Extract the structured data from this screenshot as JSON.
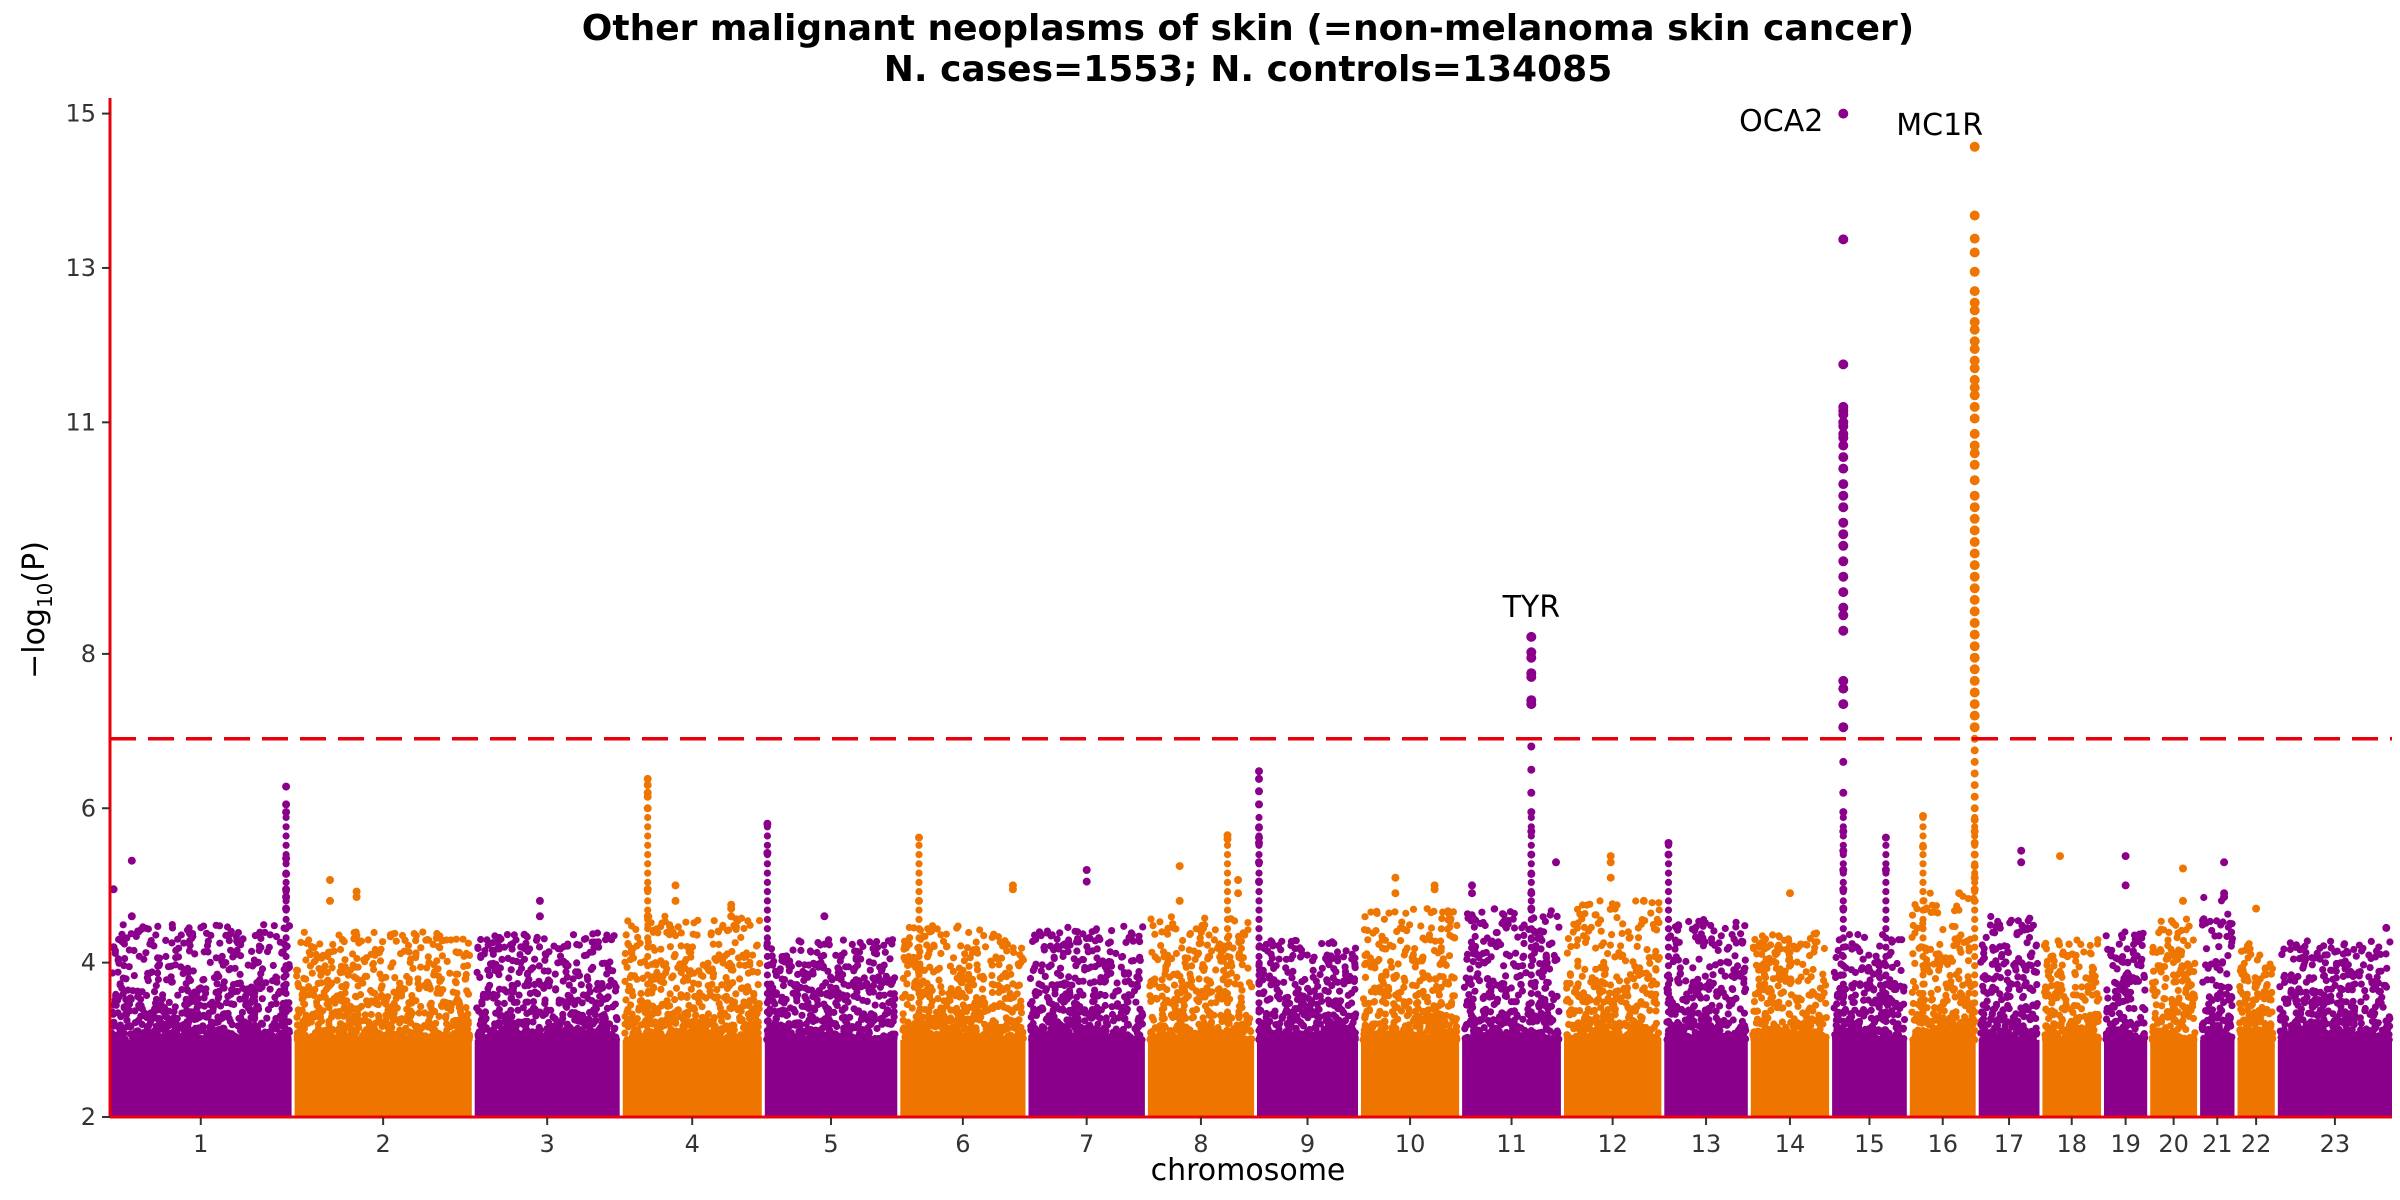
{
  "chart_data": {
    "type": "scatter",
    "subtype": "manhattan",
    "title": "Other malignant neoplasms of skin (=non-melanoma skin cancer)",
    "subtitle": "N. cases=1553; N. controls=134085",
    "xlabel": "chromosome",
    "ylabel_prefix": "−log",
    "ylabel_sub": "10",
    "ylabel_suffix": "(P)",
    "ylim": [
      2,
      15.15
    ],
    "yticks": [
      "2",
      "4",
      "6",
      "8",
      "11",
      "13",
      "15"
    ],
    "ytick_values": [
      2,
      4,
      6,
      8,
      11,
      13,
      15
    ],
    "significance_threshold": 6.9,
    "colors": {
      "odd": "#8b008b",
      "even": "#ee7600",
      "threshold": "#e8000b",
      "axis": "#e8000b"
    },
    "chromosomes": [
      {
        "label": "1",
        "size": 248,
        "color": "#8b008b",
        "max_bg": 4.5
      },
      {
        "label": "2",
        "size": 242,
        "color": "#ee7600",
        "max_bg": 4.4
      },
      {
        "label": "3",
        "size": 198,
        "color": "#8b008b",
        "max_bg": 4.4
      },
      {
        "label": "4",
        "size": 190,
        "color": "#ee7600",
        "max_bg": 4.6
      },
      {
        "label": "5",
        "size": 181,
        "color": "#8b008b",
        "max_bg": 4.3
      },
      {
        "label": "6",
        "size": 171,
        "color": "#ee7600",
        "max_bg": 4.5
      },
      {
        "label": "7",
        "size": 159,
        "color": "#8b008b",
        "max_bg": 4.5
      },
      {
        "label": "8",
        "size": 145,
        "color": "#ee7600",
        "max_bg": 4.6
      },
      {
        "label": "9",
        "size": 138,
        "color": "#8b008b",
        "max_bg": 4.3
      },
      {
        "label": "10",
        "size": 134,
        "color": "#ee7600",
        "max_bg": 4.7
      },
      {
        "label": "11",
        "size": 135,
        "color": "#8b008b",
        "max_bg": 4.7
      },
      {
        "label": "12",
        "size": 133,
        "color": "#ee7600",
        "max_bg": 4.8
      },
      {
        "label": "13",
        "size": 114,
        "color": "#8b008b",
        "max_bg": 4.6
      },
      {
        "label": "14",
        "size": 107,
        "color": "#ee7600",
        "max_bg": 4.4
      },
      {
        "label": "15",
        "size": 102,
        "color": "#8b008b",
        "max_bg": 4.4
      },
      {
        "label": "16",
        "size": 90,
        "color": "#ee7600",
        "max_bg": 4.9
      },
      {
        "label": "17",
        "size": 83,
        "color": "#8b008b",
        "max_bg": 4.6
      },
      {
        "label": "18",
        "size": 80,
        "color": "#ee7600",
        "max_bg": 4.3
      },
      {
        "label": "19",
        "size": 59,
        "color": "#8b008b",
        "max_bg": 4.4
      },
      {
        "label": "20",
        "size": 64,
        "color": "#ee7600",
        "max_bg": 4.6
      },
      {
        "label": "21",
        "size": 47,
        "color": "#8b008b",
        "max_bg": 4.9
      },
      {
        "label": "22",
        "size": 51,
        "color": "#ee7600",
        "max_bg": 4.3
      },
      {
        "label": "23",
        "size": 156,
        "color": "#8b008b",
        "max_bg": 4.3
      }
    ],
    "peaks": [
      {
        "chrom": "1",
        "pos": 0.02,
        "values": [
          4.95,
          4.2
        ]
      },
      {
        "chrom": "1",
        "pos": 0.12,
        "values": [
          5.32,
          4.6
        ]
      },
      {
        "chrom": "1",
        "pos": 0.97,
        "values": [
          6.28,
          6.05,
          5.95,
          5.35,
          5.15,
          4.95,
          4.85,
          4.7
        ]
      },
      {
        "chrom": "2",
        "pos": 0.2,
        "values": [
          5.07,
          4.8
        ]
      },
      {
        "chrom": "2",
        "pos": 0.35,
        "values": [
          4.92,
          4.85
        ]
      },
      {
        "chrom": "3",
        "pos": 0.45,
        "values": [
          4.8,
          4.6
        ]
      },
      {
        "chrom": "4",
        "pos": 0.18,
        "values": [
          6.38,
          6.3,
          6.2,
          6.15,
          6.0,
          4.95,
          4.6
        ]
      },
      {
        "chrom": "4",
        "pos": 0.38,
        "values": [
          5.0,
          4.8
        ]
      },
      {
        "chrom": "4",
        "pos": 0.78,
        "values": [
          4.75,
          4.7,
          4.6
        ]
      },
      {
        "chrom": "5",
        "pos": 0.02,
        "values": [
          5.8,
          5.42
        ]
      },
      {
        "chrom": "5",
        "pos": 0.45,
        "values": [
          4.6
        ]
      },
      {
        "chrom": "6",
        "pos": 0.15,
        "values": [
          5.62,
          4.8
        ]
      },
      {
        "chrom": "6",
        "pos": 0.9,
        "values": [
          5.0,
          4.95
        ]
      },
      {
        "chrom": "7",
        "pos": 0.5,
        "values": [
          5.2,
          5.05
        ]
      },
      {
        "chrom": "8",
        "pos": 0.3,
        "values": [
          5.25,
          4.8
        ]
      },
      {
        "chrom": "8",
        "pos": 0.75,
        "values": [
          5.65,
          5.6
        ]
      },
      {
        "chrom": "8",
        "pos": 0.85,
        "values": [
          5.07,
          4.9
        ]
      },
      {
        "chrom": "9",
        "pos": 0.02,
        "values": [
          6.48,
          6.38,
          6.22,
          6.05,
          5.75,
          5.62,
          5.55,
          5.3,
          5.05
        ]
      },
      {
        "chrom": "10",
        "pos": 0.35,
        "values": [
          5.1,
          4.9
        ]
      },
      {
        "chrom": "10",
        "pos": 0.75,
        "values": [
          5.0,
          4.95
        ]
      },
      {
        "chrom": "11",
        "pos": 0.1,
        "values": [
          5.0,
          4.9
        ]
      },
      {
        "chrom": "11",
        "pos": 0.7,
        "values": [
          8.22,
          8.02,
          7.95,
          7.75,
          7.7,
          7.4,
          7.35,
          6.8,
          6.5,
          6.2,
          5.95,
          5.7,
          5.4,
          5.15,
          4.9,
          4.7
        ]
      },
      {
        "chrom": "11",
        "pos": 0.95,
        "values": [
          5.3
        ]
      },
      {
        "chrom": "12",
        "pos": 0.48,
        "values": [
          5.38,
          5.3,
          5.1
        ]
      },
      {
        "chrom": "12",
        "pos": 0.82,
        "values": [
          4.8
        ]
      },
      {
        "chrom": "13",
        "pos": 0.05,
        "values": [
          5.55,
          5.4
        ]
      },
      {
        "chrom": "14",
        "pos": 0.5,
        "values": [
          4.9
        ]
      },
      {
        "chrom": "15",
        "pos": 0.15,
        "values": [
          15.0,
          13.37,
          11.75,
          11.2,
          11.15,
          11.1,
          11.0,
          10.95,
          10.85,
          10.8,
          10.7,
          10.55,
          10.4,
          10.2,
          10.05,
          9.9,
          9.7,
          9.55,
          9.4,
          9.2,
          9.0,
          8.8,
          8.6,
          8.5,
          8.3,
          7.65,
          7.55,
          7.35,
          7.05,
          6.6,
          6.2,
          5.95,
          5.7,
          5.45,
          5.2,
          4.95,
          4.7
        ]
      },
      {
        "chrom": "15",
        "pos": 0.72,
        "values": [
          5.62,
          5.2
        ]
      },
      {
        "chrom": "16",
        "pos": 0.2,
        "values": [
          5.9,
          5.5
        ]
      },
      {
        "chrom": "16",
        "pos": 0.75,
        "values": [
          4.9
        ]
      },
      {
        "chrom": "16",
        "pos": 0.985,
        "values": [
          14.57,
          13.68,
          13.38,
          13.2,
          12.95,
          12.7,
          12.55,
          12.45,
          12.3,
          12.2,
          12.05,
          11.95,
          11.8,
          11.7,
          11.55,
          11.45,
          11.35,
          11.2,
          11.05,
          10.85,
          10.7,
          10.6,
          10.45,
          10.25,
          10.05,
          9.9,
          9.75,
          9.6,
          9.45,
          9.3,
          9.15,
          9.0,
          8.85,
          8.7,
          8.55,
          8.4,
          8.25,
          8.1,
          7.95,
          7.8,
          7.65,
          7.5,
          7.35,
          7.2,
          7.05,
          6.9,
          6.75,
          6.6,
          6.45,
          6.3,
          6.15,
          6.0,
          5.85,
          5.7,
          5.55,
          5.4,
          5.25,
          5.1,
          4.95,
          4.8
        ]
      },
      {
        "chrom": "17",
        "pos": 0.7,
        "values": [
          5.45,
          5.3
        ]
      },
      {
        "chrom": "18",
        "pos": 0.3,
        "values": [
          5.38
        ]
      },
      {
        "chrom": "19",
        "pos": 0.5,
        "values": [
          5.38,
          5.0
        ]
      },
      {
        "chrom": "20",
        "pos": 0.7,
        "values": [
          5.22,
          4.8
        ]
      },
      {
        "chrom": "21",
        "pos": 0.7,
        "values": [
          5.3,
          4.9,
          4.85
        ]
      },
      {
        "chrom": "22",
        "pos": 0.5,
        "values": [
          4.7
        ]
      },
      {
        "chrom": "23",
        "pos": 0.95,
        "values": [
          4.45
        ]
      }
    ],
    "annotations": [
      {
        "text": "TYR",
        "chrom": "11",
        "pos": 0.7,
        "y": 8.22
      },
      {
        "text": "OCA2",
        "chrom": "15",
        "pos": 0.15,
        "y": 14.8
      },
      {
        "text": "MC1R",
        "chrom": "16",
        "pos": 0.985,
        "y": 14.57
      }
    ]
  }
}
